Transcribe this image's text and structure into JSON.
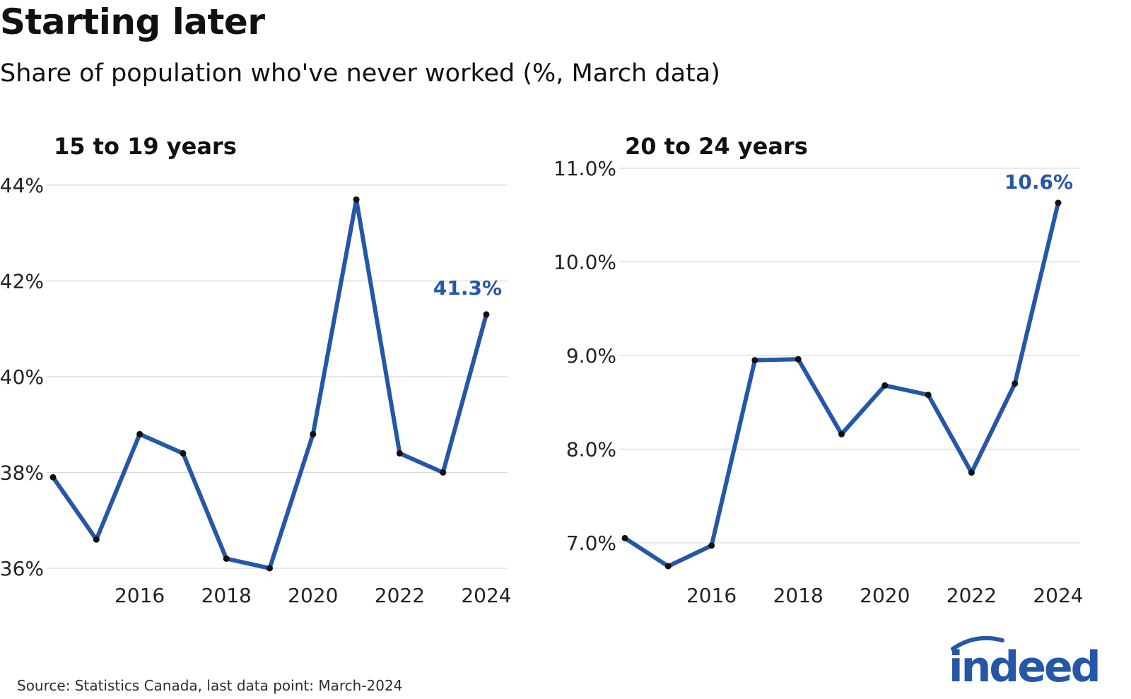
{
  "title": "Starting later",
  "subtitle": "Share of population who've never worked (%, March data)",
  "source": "Source: Statistics Canada, last data point: March-2024",
  "logo_text": "indeed",
  "colors": {
    "line": "#2557a7",
    "grid": "#d9d9d9",
    "point": "#111111",
    "label": "#2557a7"
  },
  "chart_data": [
    {
      "type": "line",
      "title": "15 to 19 years",
      "x": [
        2014,
        2015,
        2016,
        2017,
        2018,
        2019,
        2020,
        2021,
        2022,
        2023,
        2024
      ],
      "values": [
        37.9,
        36.6,
        38.8,
        38.4,
        36.2,
        36.0,
        38.8,
        43.7,
        38.4,
        38.0,
        41.3
      ],
      "xticks": [
        2016,
        2018,
        2020,
        2022,
        2024
      ],
      "xtick_labels": [
        "2016",
        "2018",
        "2020",
        "2022",
        "2024"
      ],
      "yticks": [
        36,
        38,
        40,
        42,
        44
      ],
      "ytick_labels": [
        "36%",
        "38%",
        "40%",
        "42%",
        "44%"
      ],
      "ylim": [
        36,
        44
      ],
      "end_label": "41.3%",
      "grid": true
    },
    {
      "type": "line",
      "title": "20 to 24 years",
      "x": [
        2014,
        2015,
        2016,
        2017,
        2018,
        2019,
        2020,
        2021,
        2022,
        2023,
        2024
      ],
      "values": [
        7.05,
        6.75,
        6.97,
        8.95,
        8.96,
        8.16,
        8.68,
        8.58,
        7.75,
        8.7,
        10.63
      ],
      "xticks": [
        2016,
        2018,
        2020,
        2022,
        2024
      ],
      "xtick_labels": [
        "2016",
        "2018",
        "2020",
        "2022",
        "2024"
      ],
      "yticks": [
        7,
        8,
        9,
        10,
        11
      ],
      "ytick_labels": [
        "7.0%",
        "8.0%",
        "9.0%",
        "10.0%",
        "11.0%"
      ],
      "ylim": [
        7,
        11
      ],
      "end_label": "10.6%",
      "grid": true
    }
  ]
}
